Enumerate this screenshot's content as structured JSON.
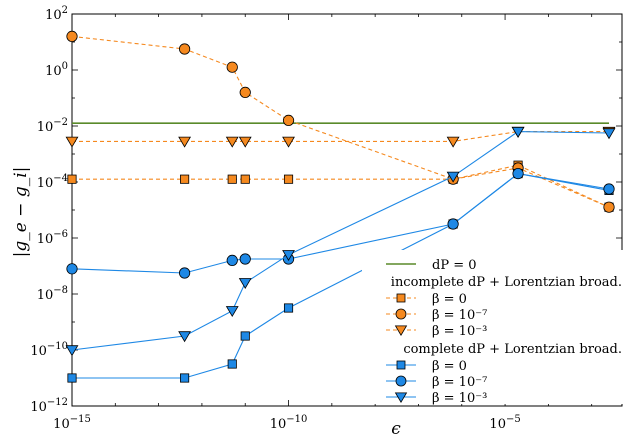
{
  "chart_data": {
    "type": "line",
    "xlabel": "ϵ",
    "ylabel": "|g_e − g_i|",
    "xscale": "log",
    "yscale": "log",
    "xlim_exp": [
      -15,
      -2.3
    ],
    "ylim_exp": [
      -12,
      2
    ],
    "x_ticks": [
      {
        "base": "10",
        "exp": "−15",
        "value_exp": -15
      },
      {
        "base": "10",
        "exp": "−10",
        "value_exp": -10
      },
      {
        "base": "10",
        "exp": "−5",
        "value_exp": -5
      }
    ],
    "y_ticks": [
      {
        "base": "10",
        "exp": "2",
        "value_exp": 2
      },
      {
        "base": "10",
        "exp": "0",
        "value_exp": 0
      },
      {
        "base": "10",
        "exp": "−2",
        "value_exp": -2
      },
      {
        "base": "10",
        "exp": "−4",
        "value_exp": -4
      },
      {
        "base": "10",
        "exp": "−6",
        "value_exp": -6
      },
      {
        "base": "10",
        "exp": "−8",
        "value_exp": -8
      },
      {
        "base": "10",
        "exp": "−10",
        "value_exp": -10
      },
      {
        "base": "10",
        "exp": "−12",
        "value_exp": -12
      }
    ],
    "grid": false,
    "legend_position": "bottom-right",
    "colors": {
      "green": "#5a8a2a",
      "orange": "#f5891f",
      "blue": "#1e88e5"
    },
    "reference_line": {
      "label": "dP = 0",
      "y_exp": -1.9,
      "x_exp": [
        -15,
        -2.6
      ],
      "color": "#5a8a2a"
    },
    "legend_groups": [
      {
        "heading": "incomplete dP + Lorentzian broad."
      },
      {
        "heading": "complete dP + Lorentzian broad."
      }
    ],
    "series": [
      {
        "group": 0,
        "name": "β = 0",
        "marker": "square",
        "color": "#f5891f",
        "dashed": true,
        "x_exp": [
          -15,
          -12.4,
          -11.3,
          -11,
          -10,
          -6.2,
          -4.7,
          -2.6
        ],
        "y_exp": [
          -3.9,
          -3.9,
          -3.9,
          -3.9,
          -3.9,
          -3.9,
          -3.4,
          -4.9
        ]
      },
      {
        "group": 0,
        "name": "β = 10⁻⁷",
        "marker": "circle",
        "color": "#f5891f",
        "dashed": true,
        "x_exp": [
          -15,
          -12.4,
          -11.3,
          -11,
          -10,
          -6.2,
          -4.7,
          -2.6
        ],
        "y_exp": [
          1.2,
          0.75,
          0.1,
          -0.8,
          -1.8,
          -3.9,
          -3.5,
          -4.9
        ]
      },
      {
        "group": 0,
        "name": "β = 10⁻³",
        "marker": "triangle",
        "color": "#f5891f",
        "dashed": true,
        "x_exp": [
          -15,
          -12.4,
          -11.3,
          -11,
          -10,
          -6.2,
          -4.7,
          -2.6
        ],
        "y_exp": [
          -2.55,
          -2.55,
          -2.55,
          -2.55,
          -2.55,
          -2.55,
          -2.2,
          -2.2
        ]
      },
      {
        "group": 1,
        "name": "β = 0",
        "marker": "square",
        "color": "#1e88e5",
        "dashed": false,
        "x_exp": [
          -15,
          -12.4,
          -11.3,
          -11,
          -10,
          -6.2,
          -4.7,
          -2.6
        ],
        "y_exp": [
          -11,
          -11,
          -10.5,
          -9.5,
          -8.5,
          -5.5,
          -3.7,
          -4.3
        ]
      },
      {
        "group": 1,
        "name": "β = 10⁻⁷",
        "marker": "circle",
        "color": "#1e88e5",
        "dashed": false,
        "x_exp": [
          -15,
          -12.4,
          -11.3,
          -11,
          -10,
          -6.2,
          -4.7,
          -2.6
        ],
        "y_exp": [
          -7.1,
          -7.25,
          -6.8,
          -6.75,
          -6.75,
          -5.5,
          -3.7,
          -4.25
        ]
      },
      {
        "group": 1,
        "name": "β = 10⁻³",
        "marker": "triangle",
        "color": "#1e88e5",
        "dashed": false,
        "x_exp": [
          -15,
          -12.4,
          -11.3,
          -11,
          -10,
          -6.2,
          -4.7,
          -2.6
        ],
        "y_exp": [
          -10,
          -9.5,
          -8.6,
          -7.6,
          -6.6,
          -3.8,
          -2.2,
          -2.25
        ]
      }
    ]
  }
}
